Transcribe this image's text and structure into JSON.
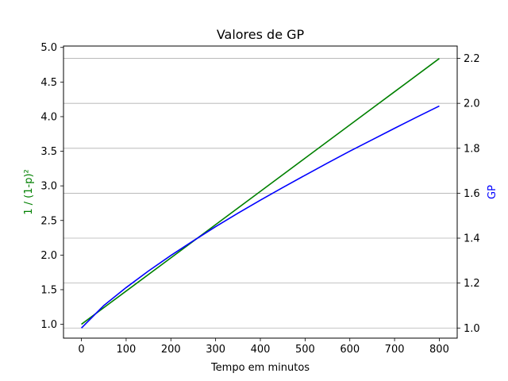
{
  "chart_data": {
    "type": "line",
    "title": "Valores de GP",
    "xlabel": "Tempo em minutos",
    "ylabel_left": "1 / (1-p)²",
    "ylabel_right": "GP",
    "xlim": [
      -40,
      840
    ],
    "ylim_left": [
      0.8,
      5.02
    ],
    "ylim_right": [
      0.955,
      2.255
    ],
    "x_ticks": [
      "0",
      "100",
      "200",
      "300",
      "400",
      "500",
      "600",
      "700",
      "800"
    ],
    "y_ticks_left": [
      "1.0",
      "1.5",
      "2.0",
      "2.5",
      "3.0",
      "3.5",
      "4.0",
      "4.5",
      "5.0"
    ],
    "y_ticks_right": [
      "1.0",
      "1.2",
      "1.4",
      "1.6",
      "1.8",
      "2.0",
      "2.2"
    ],
    "grid": "horizontal lines at right-axis ticks",
    "series": [
      {
        "axis": "left",
        "color": "#008000",
        "x": [
          0,
          100,
          200,
          300,
          400,
          500,
          600,
          700,
          800
        ],
        "y": [
          1.0,
          1.48,
          1.96,
          2.44,
          2.92,
          3.4,
          3.88,
          4.36,
          4.84
        ]
      },
      {
        "axis": "right",
        "color": "#0000ff",
        "x": [
          0,
          50,
          100,
          150,
          200,
          250,
          300,
          350,
          400,
          450,
          500,
          550,
          600,
          650,
          700,
          750,
          800
        ],
        "y": [
          1.0,
          1.1,
          1.18,
          1.254,
          1.323,
          1.388,
          1.451,
          1.511,
          1.569,
          1.625,
          1.68,
          1.734,
          1.787,
          1.838,
          1.889,
          1.939,
          1.988
        ]
      }
    ]
  }
}
